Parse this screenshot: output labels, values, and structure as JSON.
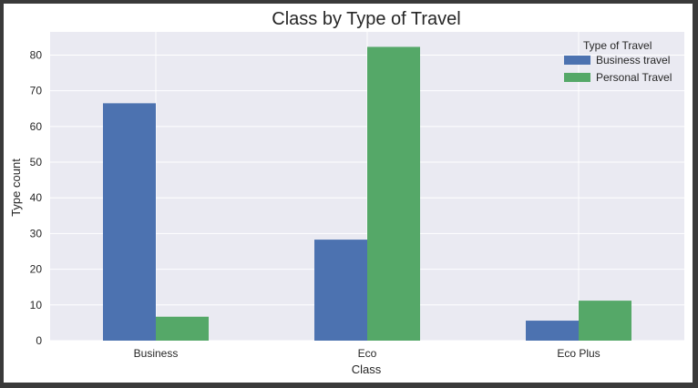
{
  "chart_data": {
    "type": "bar",
    "title": "Class by Type of Travel",
    "xlabel": "Class",
    "ylabel": "Type count",
    "categories": [
      "Business",
      "Eco",
      "Eco Plus"
    ],
    "series": [
      {
        "name": "Business travel",
        "color": "#4c72b0",
        "values": [
          66.5,
          28.3,
          5.6
        ]
      },
      {
        "name": "Personal Travel",
        "color": "#55a868",
        "values": [
          6.7,
          82.3,
          11.2
        ]
      }
    ],
    "ylim": [
      0,
      86.5
    ],
    "yticks": [
      0,
      10,
      20,
      30,
      40,
      50,
      60,
      70,
      80
    ],
    "grid": true,
    "legend": {
      "title": "Type of Travel",
      "placement": "top-right"
    },
    "colors": {
      "plot_background": "#eaeaf2",
      "grid": "#ffffff"
    }
  }
}
